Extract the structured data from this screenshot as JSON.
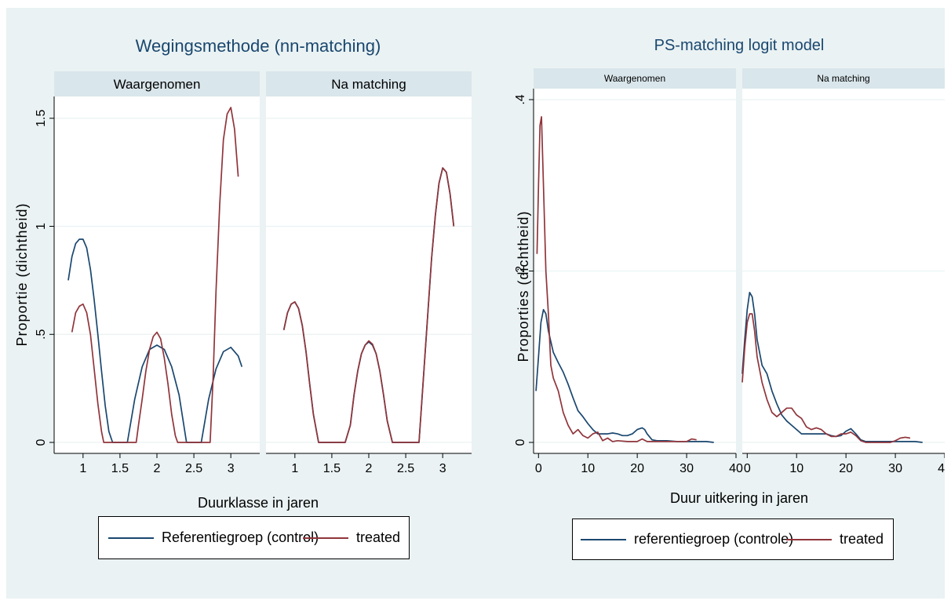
{
  "colors": {
    "control": "#1a476f",
    "treated": "#90353b",
    "background": "#eaf2f3",
    "strip": "#d9e6eb",
    "title": "#1a476f"
  },
  "chart_data": [
    {
      "type": "line",
      "title": "Wegingsmethode (nn-matching)",
      "xlabel": "Duurklasse in jaren",
      "ylabel": "Proportie (dichtheid)",
      "xlim": [
        0.8,
        3.2
      ],
      "ylim": [
        0,
        1.55
      ],
      "xticks": [
        "1",
        "1.5",
        "2",
        "2.5",
        "3"
      ],
      "yticks": [
        "0",
        ".5",
        "1",
        "1.5"
      ],
      "grid": true,
      "legend_position": "bottom",
      "legend": [
        "Referentiegroep (control)",
        "treated"
      ],
      "panels": [
        {
          "label": "Waargenomen",
          "series": [
            {
              "name": "Referentiegroep (control)",
              "x": [
                0.8,
                0.85,
                0.9,
                0.95,
                1.0,
                1.05,
                1.1,
                1.15,
                1.2,
                1.25,
                1.3,
                1.35,
                1.4,
                1.6,
                1.65,
                1.7,
                1.8,
                1.9,
                2.0,
                2.1,
                2.2,
                2.3,
                2.4,
                2.6,
                2.65,
                2.7,
                2.8,
                2.9,
                3.0,
                3.1,
                3.15
              ],
              "y": [
                0.75,
                0.86,
                0.92,
                0.94,
                0.94,
                0.9,
                0.8,
                0.66,
                0.5,
                0.33,
                0.17,
                0.05,
                0,
                0,
                0.1,
                0.2,
                0.35,
                0.43,
                0.45,
                0.43,
                0.35,
                0.22,
                0,
                0,
                0.1,
                0.2,
                0.34,
                0.42,
                0.44,
                0.4,
                0.35
              ]
            },
            {
              "name": "treated",
              "x": [
                0.85,
                0.9,
                0.95,
                1.0,
                1.05,
                1.1,
                1.15,
                1.2,
                1.25,
                1.28,
                1.72,
                1.75,
                1.8,
                1.85,
                1.9,
                1.95,
                2.0,
                2.05,
                2.1,
                2.15,
                2.2,
                2.25,
                2.28,
                2.72,
                2.76,
                2.8,
                2.85,
                2.9,
                2.95,
                3.0,
                3.05,
                3.1
              ],
              "y": [
                0.51,
                0.6,
                0.63,
                0.64,
                0.6,
                0.5,
                0.34,
                0.18,
                0.05,
                0,
                0,
                0.08,
                0.2,
                0.33,
                0.43,
                0.49,
                0.51,
                0.48,
                0.39,
                0.27,
                0.13,
                0.03,
                0,
                0,
                0.3,
                0.7,
                1.1,
                1.4,
                1.52,
                1.55,
                1.45,
                1.23
              ]
            }
          ]
        },
        {
          "label": "Na matching",
          "series": [
            {
              "name": "Referentiegroep (control)",
              "x": [
                0.85,
                0.9,
                0.95,
                1.0,
                1.05,
                1.1,
                1.15,
                1.2,
                1.25,
                1.32,
                1.68,
                1.75,
                1.8,
                1.85,
                1.9,
                1.95,
                2.0,
                2.05,
                2.1,
                2.15,
                2.2,
                2.25,
                2.32,
                2.68,
                2.75,
                2.8,
                2.85,
                2.9,
                2.95,
                3.0,
                3.05,
                3.1,
                3.15
              ],
              "y": [
                0.52,
                0.6,
                0.64,
                0.65,
                0.62,
                0.54,
                0.42,
                0.27,
                0.13,
                0,
                0,
                0.08,
                0.22,
                0.33,
                0.41,
                0.45,
                0.465,
                0.45,
                0.41,
                0.33,
                0.22,
                0.1,
                0,
                0,
                0.35,
                0.6,
                0.85,
                1.05,
                1.2,
                1.27,
                1.25,
                1.15,
                1.0
              ]
            },
            {
              "name": "treated",
              "x": [
                0.85,
                0.9,
                0.95,
                1.0,
                1.05,
                1.1,
                1.15,
                1.2,
                1.25,
                1.32,
                1.68,
                1.75,
                1.8,
                1.85,
                1.9,
                1.95,
                2.0,
                2.05,
                2.1,
                2.15,
                2.2,
                2.25,
                2.32,
                2.68,
                2.75,
                2.8,
                2.85,
                2.9,
                2.95,
                3.0,
                3.05,
                3.1,
                3.15
              ],
              "y": [
                0.52,
                0.6,
                0.64,
                0.65,
                0.62,
                0.54,
                0.42,
                0.27,
                0.13,
                0,
                0,
                0.08,
                0.22,
                0.33,
                0.41,
                0.45,
                0.47,
                0.455,
                0.41,
                0.33,
                0.22,
                0.1,
                0,
                0,
                0.35,
                0.6,
                0.85,
                1.05,
                1.2,
                1.27,
                1.25,
                1.15,
                1.0
              ]
            }
          ]
        }
      ]
    },
    {
      "type": "line",
      "title": "PS-matching logit model",
      "xlabel": "Duur uitkering in jaren",
      "ylabel": "Proporties (dichtheid)",
      "xlim": [
        -1,
        40
      ],
      "ylim": [
        0,
        0.4
      ],
      "xticks": [
        "0",
        "10",
        "20",
        "30",
        "40"
      ],
      "yticks": [
        "0",
        ".2",
        ".4"
      ],
      "grid": true,
      "legend_position": "bottom",
      "legend": [
        "referentiegroep (controle)",
        "treated"
      ],
      "panels": [
        {
          "label": "Waargenomen",
          "series": [
            {
              "name": "referentiegroep (controle)",
              "x": [
                -0.5,
                0,
                0.5,
                1,
                1.5,
                2,
                3,
                4,
                5,
                6,
                7,
                8,
                9,
                10,
                11,
                12,
                13,
                14,
                15,
                16,
                17,
                18,
                19,
                20,
                21,
                21.5,
                22,
                23,
                24,
                26,
                28,
                30,
                32,
                34,
                35.5
              ],
              "y": [
                0.06,
                0.1,
                0.14,
                0.155,
                0.15,
                0.13,
                0.105,
                0.093,
                0.082,
                0.068,
                0.052,
                0.037,
                0.03,
                0.022,
                0.015,
                0.01,
                0.01,
                0.01,
                0.011,
                0.01,
                0.008,
                0.008,
                0.01,
                0.015,
                0.017,
                0.015,
                0.01,
                0.003,
                0.002,
                0.002,
                0.001,
                0.001,
                0.001,
                0.001,
                0.0
              ]
            },
            {
              "name": "treated",
              "x": [
                -0.3,
                0,
                0.3,
                0.6,
                1.0,
                1.5,
                2,
                2.5,
                3,
                4,
                5,
                6,
                7,
                8,
                9,
                10,
                11,
                12,
                13,
                14,
                15,
                16,
                18,
                20,
                21,
                22,
                23,
                25,
                28,
                30,
                31,
                32
              ],
              "y": [
                0.22,
                0.3,
                0.37,
                0.38,
                0.3,
                0.2,
                0.15,
                0.09,
                0.075,
                0.06,
                0.035,
                0.02,
                0.01,
                0.015,
                0.008,
                0.005,
                0.01,
                0.012,
                0.002,
                0.005,
                0.001,
                0.002,
                0.001,
                0.001,
                0.004,
                0.001,
                0.001,
                0.001,
                0.001,
                0.001,
                0.004,
                0.003
              ]
            }
          ]
        },
        {
          "label": "Na matching",
          "series": [
            {
              "name": "referentiegroep (controle)",
              "x": [
                -1,
                -0.5,
                0,
                0.5,
                1,
                1.5,
                2,
                3,
                4,
                5,
                6,
                7,
                8,
                9,
                10,
                11,
                12,
                13,
                14,
                15,
                16,
                17,
                18,
                19,
                20,
                21,
                22,
                23,
                24,
                26,
                28,
                30,
                32,
                34,
                35.5
              ],
              "y": [
                0.08,
                0.12,
                0.155,
                0.175,
                0.17,
                0.15,
                0.12,
                0.09,
                0.08,
                0.06,
                0.045,
                0.032,
                0.025,
                0.02,
                0.015,
                0.01,
                0.01,
                0.01,
                0.01,
                0.01,
                0.01,
                0.008,
                0.007,
                0.008,
                0.013,
                0.016,
                0.01,
                0.003,
                0.001,
                0.001,
                0.001,
                0.001,
                0.001,
                0.001,
                0.0
              ]
            },
            {
              "name": "treated",
              "x": [
                -1,
                -0.5,
                0,
                0.5,
                1,
                1.5,
                2,
                3,
                4,
                5,
                6,
                7,
                8,
                9,
                10,
                11,
                12,
                13,
                14,
                15,
                16,
                17,
                18,
                19,
                20,
                21,
                22,
                23,
                24,
                25,
                27,
                29,
                30,
                31,
                32,
                33
              ],
              "y": [
                0.07,
                0.11,
                0.14,
                0.15,
                0.15,
                0.13,
                0.1,
                0.07,
                0.05,
                0.035,
                0.03,
                0.035,
                0.04,
                0.04,
                0.032,
                0.028,
                0.018,
                0.015,
                0.017,
                0.015,
                0.01,
                0.007,
                0.007,
                0.01,
                0.01,
                0.012,
                0.008,
                0.002,
                0.0,
                0.0,
                0.0,
                0.0,
                0.002,
                0.005,
                0.006,
                0.005
              ]
            }
          ]
        }
      ]
    }
  ]
}
